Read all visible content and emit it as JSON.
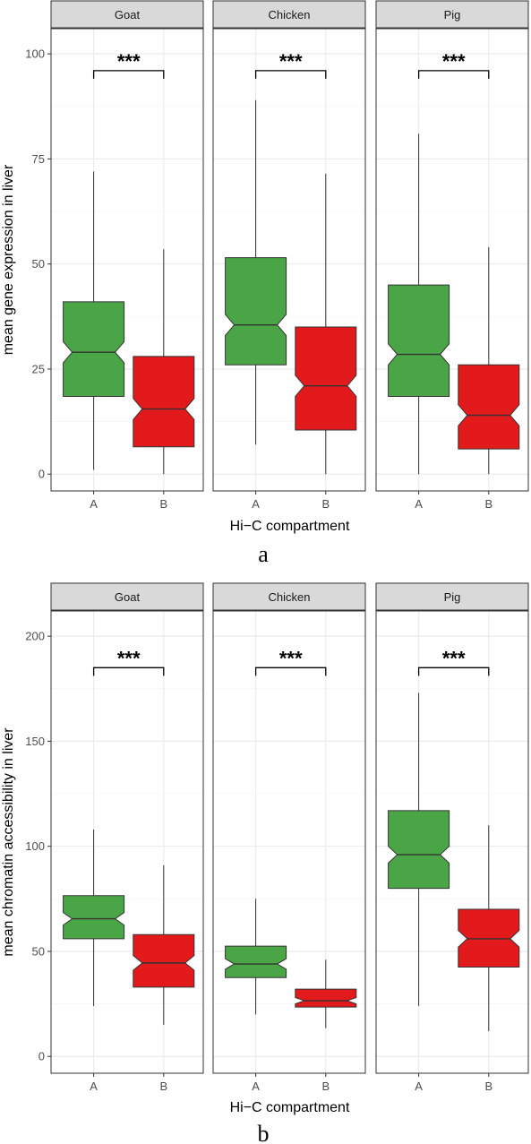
{
  "chart_data": [
    {
      "type": "box",
      "panel_label": "a",
      "xlabel": "Hi−C compartment",
      "ylabel": "mean gene expression in liver",
      "ylim": [
        -4,
        106
      ],
      "yticks": [
        0,
        25,
        50,
        75,
        100
      ],
      "categories": [
        "A",
        "B"
      ],
      "colors": {
        "A": "#4aa546",
        "B": "#e31a1c"
      },
      "significance": "***",
      "bracket_y": 96,
      "facets": [
        {
          "name": "Goat",
          "boxes": [
            {
              "category": "A",
              "min": 1,
              "q1": 18.5,
              "median": 29,
              "q3": 41,
              "max": 72,
              "notch_low": 26.5,
              "notch_high": 31.5
            },
            {
              "category": "B",
              "min": 0,
              "q1": 6.5,
              "median": 15.5,
              "q3": 28,
              "max": 53.5,
              "notch_low": 13,
              "notch_high": 18
            }
          ]
        },
        {
          "name": "Chicken",
          "boxes": [
            {
              "category": "A",
              "min": 7,
              "q1": 26,
              "median": 35.5,
              "q3": 51.5,
              "max": 89,
              "notch_low": 33,
              "notch_high": 38
            },
            {
              "category": "B",
              "min": 0,
              "q1": 10.5,
              "median": 21,
              "q3": 35,
              "max": 71.5,
              "notch_low": 18.5,
              "notch_high": 23.5
            }
          ]
        },
        {
          "name": "Pig",
          "boxes": [
            {
              "category": "A",
              "min": 0,
              "q1": 18.5,
              "median": 28.5,
              "q3": 45,
              "max": 81,
              "notch_low": 26,
              "notch_high": 31
            },
            {
              "category": "B",
              "min": 0,
              "q1": 6,
              "median": 14,
              "q3": 26,
              "max": 54,
              "notch_low": 11.5,
              "notch_high": 16.5
            }
          ]
        }
      ]
    },
    {
      "type": "box",
      "panel_label": "b",
      "xlabel": "Hi−C compartment",
      "ylabel": "mean chromatin accessibility in liver",
      "ylim": [
        -8,
        212
      ],
      "yticks": [
        0,
        50,
        100,
        150,
        200
      ],
      "categories": [
        "A",
        "B"
      ],
      "colors": {
        "A": "#4aa546",
        "B": "#e31a1c"
      },
      "significance": "***",
      "bracket_y": 185,
      "facets": [
        {
          "name": "Goat",
          "boxes": [
            {
              "category": "A",
              "min": 24,
              "q1": 56,
              "median": 65.5,
              "q3": 76.5,
              "max": 108,
              "notch_low": 62.5,
              "notch_high": 68.5
            },
            {
              "category": "B",
              "min": 15,
              "q1": 33,
              "median": 44.5,
              "q3": 58,
              "max": 91,
              "notch_low": 41,
              "notch_high": 48
            }
          ]
        },
        {
          "name": "Chicken",
          "boxes": [
            {
              "category": "A",
              "min": 20,
              "q1": 37.5,
              "median": 44,
              "q3": 52.5,
              "max": 75,
              "notch_low": 41.5,
              "notch_high": 46.5
            },
            {
              "category": "B",
              "min": 13.5,
              "q1": 23.5,
              "median": 26.5,
              "q3": 32,
              "max": 46,
              "notch_low": 25,
              "notch_high": 28
            }
          ]
        },
        {
          "name": "Pig",
          "boxes": [
            {
              "category": "A",
              "min": 24,
              "q1": 80,
              "median": 96,
              "q3": 117,
              "max": 173,
              "notch_low": 92,
              "notch_high": 100
            },
            {
              "category": "B",
              "min": 12,
              "q1": 42.5,
              "median": 56,
              "q3": 70,
              "max": 110,
              "notch_low": 52,
              "notch_high": 60
            }
          ]
        }
      ]
    }
  ]
}
